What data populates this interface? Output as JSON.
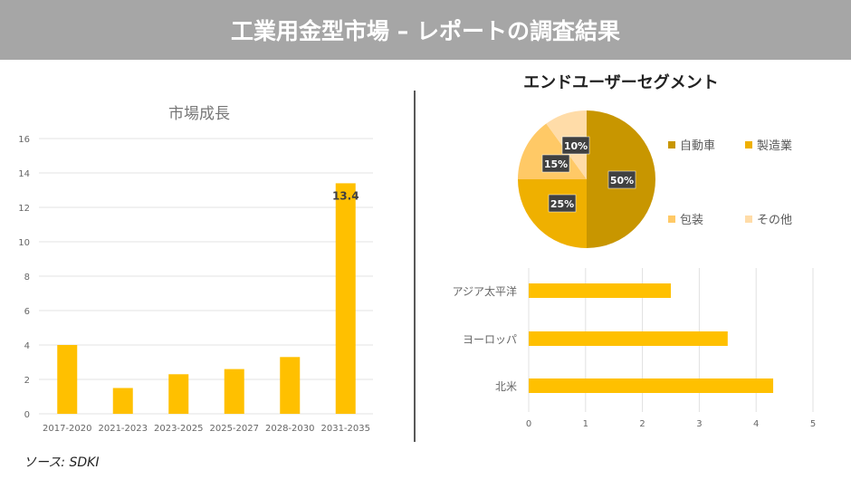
{
  "header": {
    "title": "工業用金型市場 – レポートの調査結果"
  },
  "source": "ソース: SDKI",
  "colors": {
    "bar": "#ffc000",
    "header": "#a6a6a6",
    "pie": [
      "#c89600",
      "#efb000",
      "#ffc966",
      "#ffdca8"
    ]
  },
  "chart_data": [
    {
      "type": "bar",
      "title": "市場成長",
      "categories": [
        "2017-2020",
        "2021-2023",
        "2023-2025",
        "2025-2027",
        "2028-2030",
        "2031-2035"
      ],
      "values": [
        4.0,
        1.5,
        2.3,
        2.6,
        3.3,
        13.4
      ],
      "data_labels": {
        "5": "13.4"
      },
      "yticks": [
        "0",
        "2",
        "4",
        "6",
        "8",
        "10",
        "12",
        "14",
        "16"
      ],
      "ylim": [
        0,
        16
      ],
      "grid": true
    },
    {
      "type": "pie",
      "title": "エンドユーザーセグメント",
      "labels": [
        "自動車",
        "製造業",
        "包装",
        "その他"
      ],
      "values": [
        50,
        25,
        15,
        10
      ],
      "data_labels": [
        "50%",
        "25%",
        "15%",
        "10%"
      ],
      "legend": "right"
    },
    {
      "type": "bar",
      "orientation": "horizontal",
      "categories": [
        "アジア太平洋",
        "ヨーロッパ",
        "北米"
      ],
      "values": [
        2.5,
        3.5,
        4.3
      ],
      "xticks": [
        "0",
        "1",
        "2",
        "3",
        "4",
        "5"
      ],
      "xlim": [
        0,
        5
      ],
      "grid": true
    }
  ]
}
